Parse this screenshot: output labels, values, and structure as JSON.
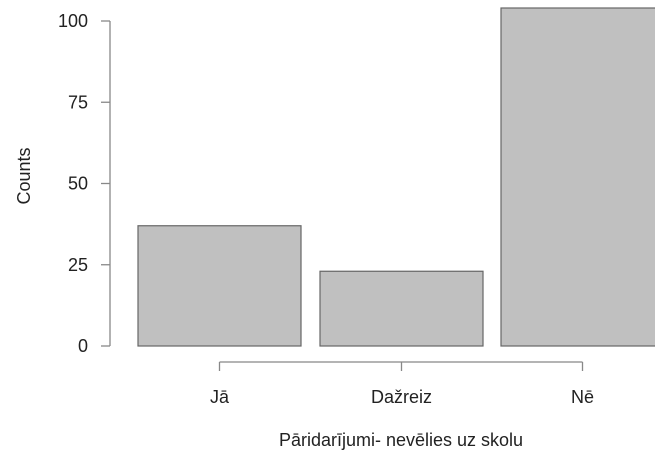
{
  "chart_data": {
    "type": "bar",
    "categories": [
      "Jā",
      "Dažreiz",
      "Nē"
    ],
    "values": [
      37,
      23,
      104
    ],
    "xlabel": "Pāridarījumi- nevēlies uz skolu",
    "ylabel": "Counts",
    "ylim": [
      0,
      104
    ],
    "yticks": [
      0,
      25,
      50,
      75,
      100
    ],
    "bar_color": "#c0c0c0",
    "grid": false
  }
}
